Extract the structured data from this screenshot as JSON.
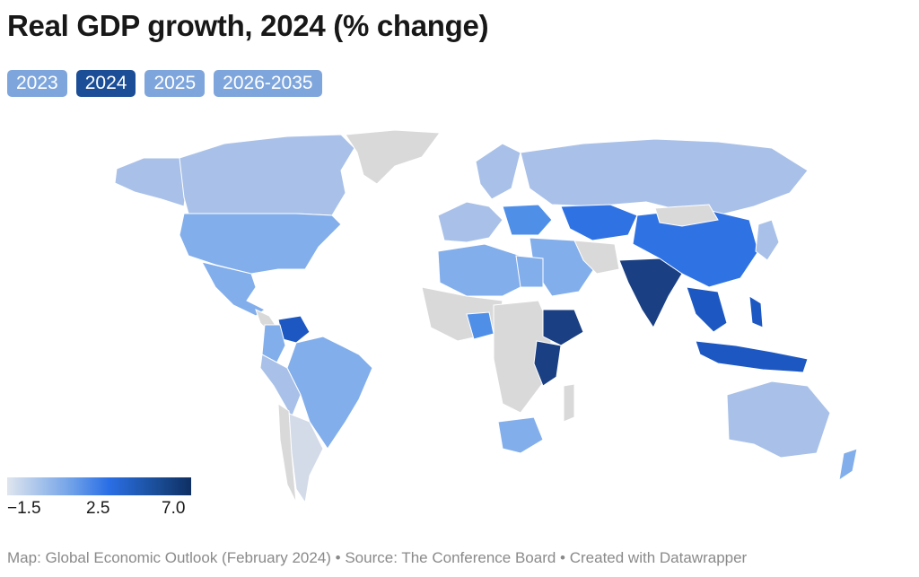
{
  "title": "Real GDP growth, 2024 (% change)",
  "tabs": [
    {
      "label": "2023",
      "active": false
    },
    {
      "label": "2024",
      "active": true
    },
    {
      "label": "2025",
      "active": false
    },
    {
      "label": "2026-2035",
      "active": false
    }
  ],
  "legend": {
    "min_label": "−1.5",
    "mid_label": "2.5",
    "max_label": "7.0"
  },
  "footer": "Map: Global Economic Outlook (February 2024) • Source: The Conference Board • Created with Datawrapper",
  "colors": {
    "no_data": "#d9d9d9",
    "very_low": "#d4dbe8",
    "low": "#a9c1e8",
    "mid_low": "#82aeeb",
    "mid": "#4f8fe8",
    "mid_high": "#2f72e3",
    "high": "#1d58c2",
    "very_high": "#1a3f82",
    "tab_inactive": "#7fa6dc",
    "tab_active": "#1c4e97"
  }
}
